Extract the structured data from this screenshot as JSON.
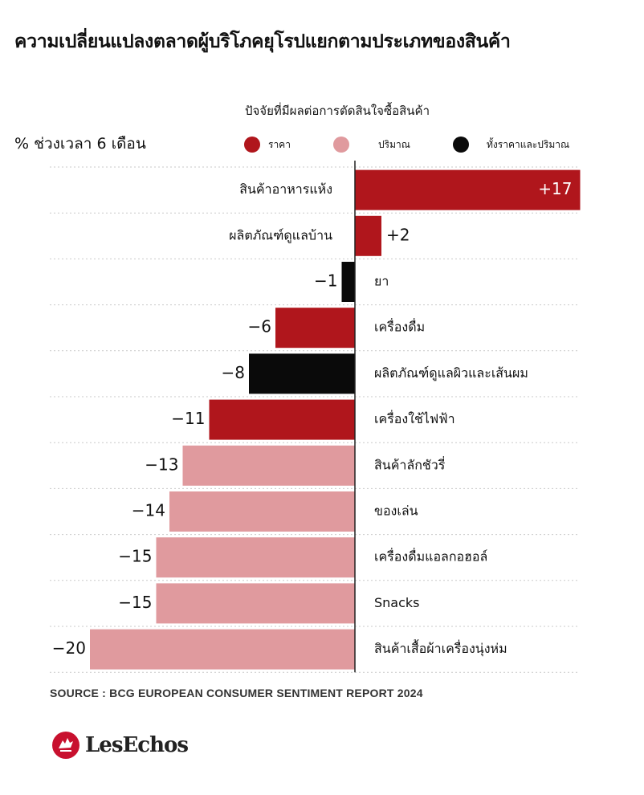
{
  "title": "ความเปลี่ยนแปลงตลาดผู้บริโภคยุโรปแยกตามประเภทของสินค้า",
  "unit_label": "% ช่วงเวลา 6 เดือน",
  "legend": {
    "title": "ปัจจัยที่มีผลต่อการตัดสินใจซื้อสินค้า",
    "items": [
      {
        "label": "ราคา",
        "color": "#b0161c"
      },
      {
        "label": "ปริมาณ",
        "color": "#e09a9e"
      },
      {
        "label": "ทั้งราคาและปริมาณ",
        "color": "#0a0a0a"
      }
    ]
  },
  "chart_data": {
    "type": "bar",
    "orientation": "horizontal",
    "categories": [
      "สินค้าอาหารแห้ง",
      "ผลิตภัณฑ์ดูแลบ้าน",
      "ยา",
      "เครื่องดื่ม",
      "ผลิตภัณฑ์ดูแลผิวและเส้นผม",
      "เครื่องใช้ไฟฟ้า",
      "สินค้าลักชัวรี่",
      "ของเล่น",
      "เครื่องดื่มแอลกอฮอล์",
      "Snacks",
      "สินค้าเสื้อผ้าเครื่องนุ่งห่ม"
    ],
    "values": [
      17,
      2,
      -1,
      -6,
      -8,
      -11,
      -13,
      -14,
      -15,
      -15,
      -20
    ],
    "value_labels": [
      "+17",
      "+2",
      "−1",
      "−6",
      "−8",
      "−11",
      "−13",
      "−14",
      "−15",
      "−15",
      "−20"
    ],
    "factors": [
      "ราคา",
      "ราคา",
      "ทั้งราคาและปริมาณ",
      "ราคา",
      "ทั้งราคาและปริมาณ",
      "ราคา",
      "ปริมาณ",
      "ปริมาณ",
      "ปริมาณ",
      "ปริมาณ",
      "ปริมาณ"
    ],
    "xlim": [
      -20,
      17
    ],
    "grid": "dotted horizontal separators"
  },
  "source": "SOURCE : BCG EUROPEAN CONSUMER SENTIMENT REPORT 2024",
  "logo": {
    "text": "LesEchos",
    "icon": "les-echos-rooster-icon",
    "color": "#c8102e"
  }
}
